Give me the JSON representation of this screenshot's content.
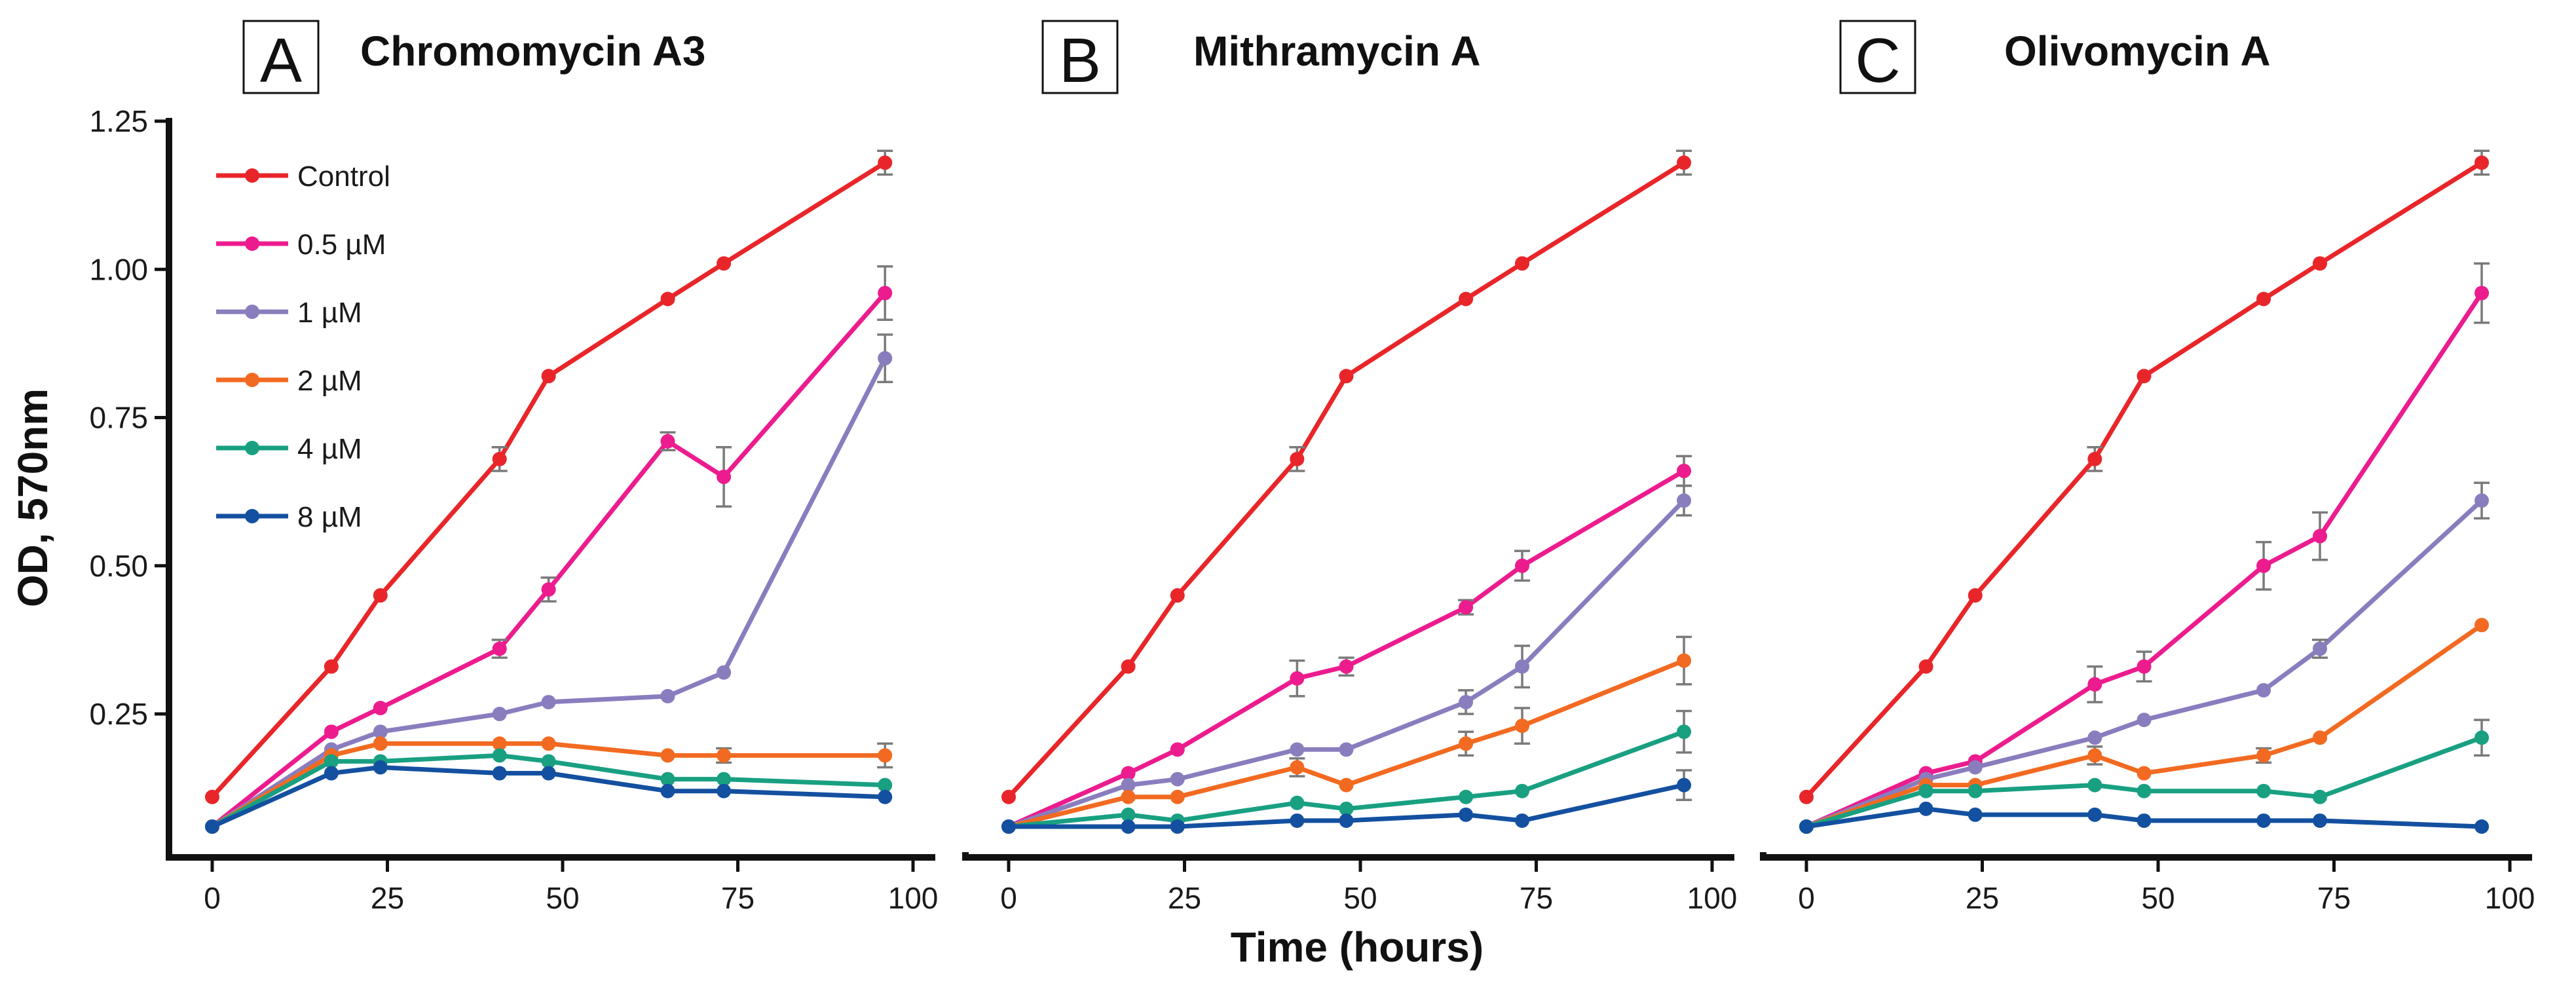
{
  "figure": {
    "xlabel": "Time (hours)",
    "ylabel": "OD, 570nm"
  },
  "chart_data": [
    {
      "type": "line",
      "panel_label": "A",
      "title": "Chromomycin A3",
      "xlim": [
        0,
        100
      ],
      "ylim": [
        0.06,
        1.25
      ],
      "xticks": [
        "0",
        "25",
        "50",
        "75",
        "100"
      ],
      "yticks": [
        "0.25",
        "0.50",
        "0.75",
        "1.00",
        "1.25"
      ],
      "x": [
        0,
        17,
        24,
        41,
        48,
        65,
        73,
        96
      ],
      "legend_position": "top-left",
      "series": [
        {
          "name": "Control",
          "color": "#e8262a",
          "values": [
            0.11,
            0.33,
            0.45,
            0.68,
            0.82,
            0.95,
            1.01,
            1.18
          ],
          "errors": [
            0,
            0,
            0,
            0.02,
            0,
            0,
            0,
            0.02
          ]
        },
        {
          "name": "0.5 µM",
          "color": "#ec1c8e",
          "values": [
            0.06,
            0.22,
            0.26,
            0.36,
            0.46,
            0.71,
            0.65,
            0.96
          ],
          "errors": [
            0,
            0,
            0,
            0.015,
            0.02,
            0.015,
            0.05,
            0.045
          ]
        },
        {
          "name": "1 µM",
          "color": "#8a7dbe",
          "values": [
            0.06,
            0.19,
            0.22,
            0.25,
            0.27,
            0.28,
            0.32,
            0.85
          ],
          "errors": [
            0,
            0,
            0,
            0,
            0,
            0,
            0,
            0.04
          ]
        },
        {
          "name": "2 µM",
          "color": "#f26a21",
          "values": [
            0.06,
            0.18,
            0.2,
            0.2,
            0.2,
            0.18,
            0.18,
            0.18
          ],
          "errors": [
            0,
            0,
            0,
            0,
            0,
            0,
            0.012,
            0.02
          ]
        },
        {
          "name": "4 µM",
          "color": "#18a081",
          "values": [
            0.06,
            0.17,
            0.17,
            0.18,
            0.17,
            0.14,
            0.14,
            0.13
          ],
          "errors": [
            0,
            0,
            0,
            0,
            0,
            0,
            0,
            0
          ]
        },
        {
          "name": "8 µM",
          "color": "#1450a0",
          "values": [
            0.06,
            0.15,
            0.16,
            0.15,
            0.15,
            0.12,
            0.12,
            0.11
          ],
          "errors": [
            0,
            0,
            0,
            0,
            0,
            0,
            0,
            0
          ]
        }
      ]
    },
    {
      "type": "line",
      "panel_label": "B",
      "title": "Mithramycin A",
      "xlim": [
        0,
        100
      ],
      "ylim": [
        0.06,
        1.25
      ],
      "xticks": [
        "0",
        "25",
        "50",
        "75",
        "100"
      ],
      "yticks": [],
      "x": [
        0,
        17,
        24,
        41,
        48,
        65,
        73,
        96
      ],
      "series": [
        {
          "name": "Control",
          "color": "#e8262a",
          "values": [
            0.11,
            0.33,
            0.45,
            0.68,
            0.82,
            0.95,
            1.01,
            1.18
          ],
          "errors": [
            0,
            0,
            0,
            0.02,
            0,
            0,
            0,
            0.02
          ]
        },
        {
          "name": "0.5 µM",
          "color": "#ec1c8e",
          "values": [
            0.06,
            0.15,
            0.19,
            0.31,
            0.33,
            0.43,
            0.5,
            0.66
          ],
          "errors": [
            0,
            0,
            0,
            0.03,
            0.015,
            0.012,
            0.025,
            0.025
          ]
        },
        {
          "name": "1 µM",
          "color": "#8a7dbe",
          "values": [
            0.06,
            0.13,
            0.14,
            0.19,
            0.19,
            0.27,
            0.33,
            0.61
          ],
          "errors": [
            0,
            0,
            0,
            0,
            0,
            0.02,
            0.035,
            0.025
          ]
        },
        {
          "name": "2 µM",
          "color": "#f26a21",
          "values": [
            0.06,
            0.11,
            0.11,
            0.16,
            0.13,
            0.2,
            0.23,
            0.34
          ],
          "errors": [
            0,
            0,
            0,
            0.015,
            0,
            0.02,
            0.03,
            0.04
          ]
        },
        {
          "name": "4 µM",
          "color": "#18a081",
          "values": [
            0.06,
            0.08,
            0.07,
            0.1,
            0.09,
            0.11,
            0.12,
            0.22
          ],
          "errors": [
            0,
            0,
            0,
            0,
            0,
            0,
            0,
            0.035
          ]
        },
        {
          "name": "8 µM",
          "color": "#1450a0",
          "values": [
            0.06,
            0.06,
            0.06,
            0.07,
            0.07,
            0.08,
            0.07,
            0.13
          ],
          "errors": [
            0,
            0,
            0,
            0,
            0,
            0,
            0,
            0.025
          ]
        }
      ]
    },
    {
      "type": "line",
      "panel_label": "C",
      "title": "Olivomycin A",
      "xlim": [
        0,
        100
      ],
      "ylim": [
        0.06,
        1.25
      ],
      "xticks": [
        "0",
        "25",
        "50",
        "75",
        "100"
      ],
      "yticks": [],
      "x": [
        0,
        17,
        24,
        41,
        48,
        65,
        73,
        96
      ],
      "series": [
        {
          "name": "Control",
          "color": "#e8262a",
          "values": [
            0.11,
            0.33,
            0.45,
            0.68,
            0.82,
            0.95,
            1.01,
            1.18
          ],
          "errors": [
            0,
            0,
            0,
            0.02,
            0,
            0,
            0,
            0.02
          ]
        },
        {
          "name": "0.5 µM",
          "color": "#ec1c8e",
          "values": [
            0.06,
            0.15,
            0.17,
            0.3,
            0.33,
            0.5,
            0.55,
            0.96
          ],
          "errors": [
            0,
            0,
            0,
            0.03,
            0.025,
            0.04,
            0.04,
            0.05
          ]
        },
        {
          "name": "1 µM",
          "color": "#8a7dbe",
          "values": [
            0.06,
            0.14,
            0.16,
            0.21,
            0.24,
            0.29,
            0.36,
            0.61
          ],
          "errors": [
            0,
            0,
            0,
            0,
            0,
            0,
            0.015,
            0.03
          ]
        },
        {
          "name": "2 µM",
          "color": "#f26a21",
          "values": [
            0.06,
            0.13,
            0.13,
            0.18,
            0.15,
            0.18,
            0.21,
            0.4
          ],
          "errors": [
            0,
            0,
            0,
            0.015,
            0,
            0.012,
            0,
            0
          ]
        },
        {
          "name": "4 µM",
          "color": "#18a081",
          "values": [
            0.06,
            0.12,
            0.12,
            0.13,
            0.12,
            0.12,
            0.11,
            0.21
          ],
          "errors": [
            0,
            0,
            0,
            0,
            0,
            0,
            0,
            0.03
          ]
        },
        {
          "name": "8 µM",
          "color": "#1450a0",
          "values": [
            0.06,
            0.09,
            0.08,
            0.08,
            0.07,
            0.07,
            0.07,
            0.06
          ],
          "errors": [
            0,
            0,
            0,
            0,
            0,
            0,
            0,
            0
          ]
        }
      ]
    }
  ]
}
